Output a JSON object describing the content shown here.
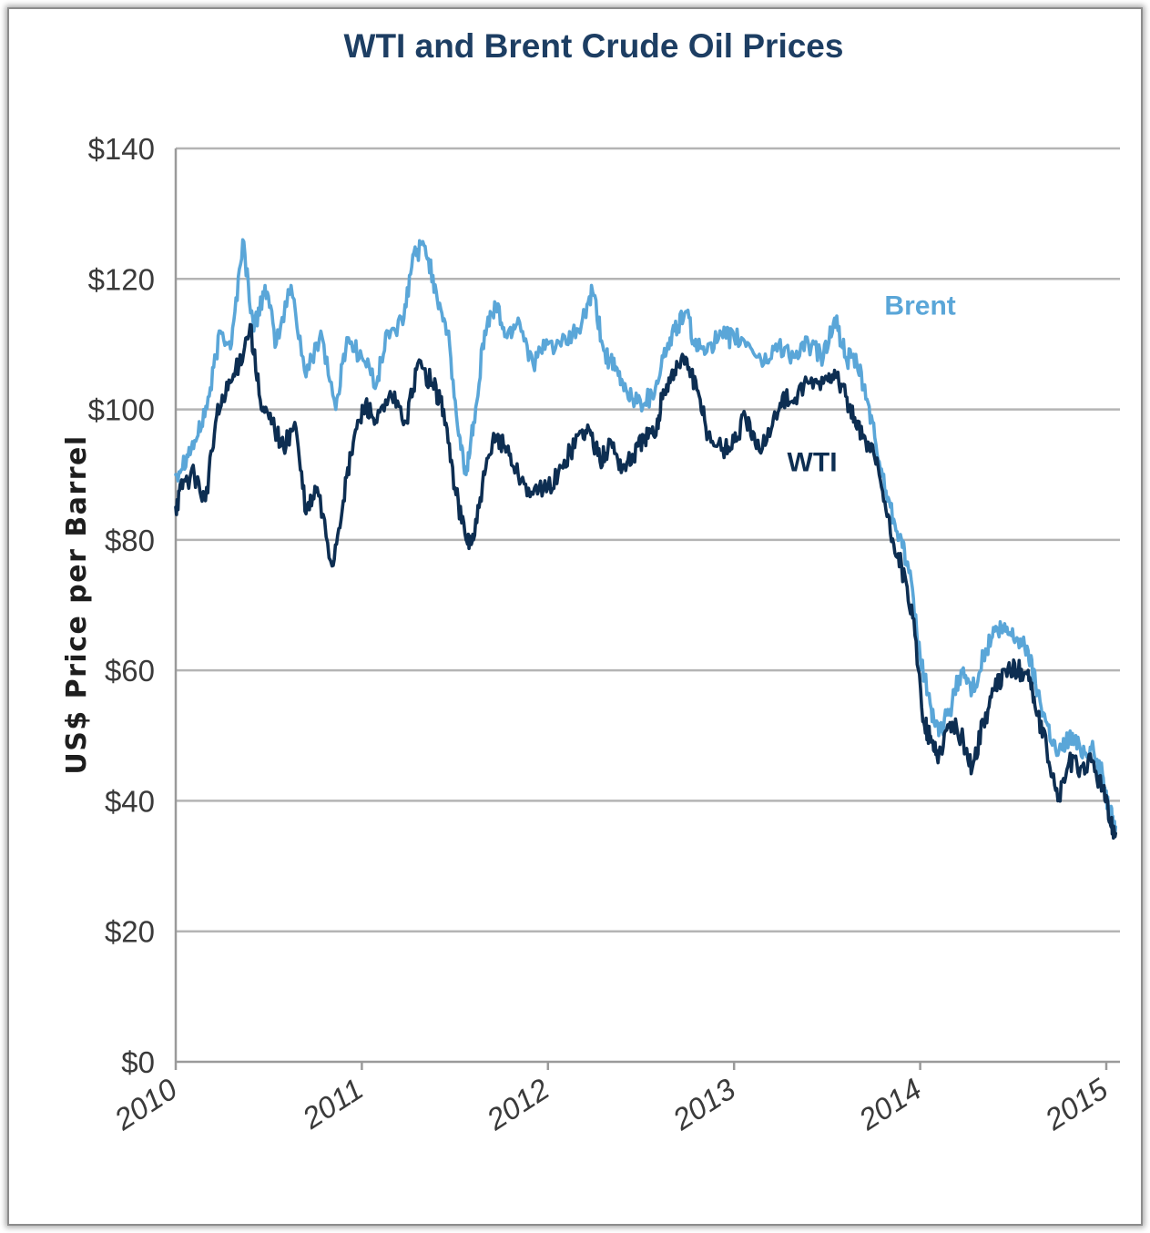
{
  "chart_data": {
    "type": "line",
    "title": "WTI and Brent Crude Oil Prices",
    "xlabel": "",
    "ylabel": "US$ Price per Barrel",
    "xlim": [
      2010,
      2015.05
    ],
    "ylim": [
      0,
      140
    ],
    "y_ticks": [
      "$0",
      "$20",
      "$40",
      "$60",
      "$80",
      "$100",
      "$120",
      "$140"
    ],
    "y_tick_values": [
      0,
      20,
      40,
      60,
      80,
      100,
      120,
      140
    ],
    "x_ticks": [
      "2010",
      "2011",
      "2012",
      "2013",
      "2014",
      "2015"
    ],
    "x_tick_values": [
      2010,
      2011,
      2012,
      2013,
      2014,
      2015
    ],
    "grid": true,
    "legend": "inline labels",
    "series": [
      {
        "name": "Brent",
        "color": "#5aa6d8",
        "points": [
          [
            2010.0,
            90
          ],
          [
            2010.06,
            93
          ],
          [
            2010.12,
            96
          ],
          [
            2010.18,
            102
          ],
          [
            2010.24,
            112
          ],
          [
            2010.3,
            110
          ],
          [
            2010.36,
            126
          ],
          [
            2010.42,
            112
          ],
          [
            2010.48,
            119
          ],
          [
            2010.54,
            110
          ],
          [
            2010.62,
            119
          ],
          [
            2010.7,
            105
          ],
          [
            2010.78,
            112
          ],
          [
            2010.86,
            100
          ],
          [
            2010.92,
            111
          ],
          [
            2011.0,
            108
          ],
          [
            2011.08,
            104
          ],
          [
            2011.14,
            112
          ],
          [
            2011.22,
            113
          ],
          [
            2011.28,
            124
          ],
          [
            2011.34,
            125
          ],
          [
            2011.4,
            118
          ],
          [
            2011.46,
            112
          ],
          [
            2011.52,
            96
          ],
          [
            2011.56,
            90
          ],
          [
            2011.6,
            98
          ],
          [
            2011.66,
            112
          ],
          [
            2011.72,
            116
          ],
          [
            2011.78,
            111
          ],
          [
            2011.84,
            114
          ],
          [
            2011.92,
            107
          ],
          [
            2012.0,
            110
          ],
          [
            2012.1,
            110
          ],
          [
            2012.18,
            113
          ],
          [
            2012.24,
            118
          ],
          [
            2012.3,
            109
          ],
          [
            2012.36,
            106
          ],
          [
            2012.42,
            103
          ],
          [
            2012.48,
            101
          ],
          [
            2012.56,
            102
          ],
          [
            2012.62,
            108
          ],
          [
            2012.68,
            112
          ],
          [
            2012.74,
            115
          ],
          [
            2012.8,
            109
          ],
          [
            2012.86,
            110
          ],
          [
            2012.94,
            111
          ],
          [
            2013.0,
            111
          ],
          [
            2013.08,
            110
          ],
          [
            2013.16,
            107
          ],
          [
            2013.24,
            110
          ],
          [
            2013.32,
            108
          ],
          [
            2013.4,
            110
          ],
          [
            2013.48,
            108
          ],
          [
            2013.54,
            114
          ],
          [
            2013.6,
            108
          ],
          [
            2013.66,
            107
          ],
          [
            2013.72,
            101
          ],
          [
            2013.78,
            92
          ],
          [
            2013.84,
            85
          ],
          [
            2013.9,
            80
          ],
          [
            2013.94,
            75
          ],
          [
            2014.0,
            62
          ],
          [
            2014.06,
            54
          ],
          [
            2014.1,
            50
          ],
          [
            2014.16,
            54
          ],
          [
            2014.22,
            60
          ],
          [
            2014.28,
            57
          ],
          [
            2014.34,
            62
          ],
          [
            2014.4,
            66
          ],
          [
            2014.46,
            66
          ],
          [
            2014.52,
            65
          ],
          [
            2014.58,
            63
          ],
          [
            2014.62,
            58
          ],
          [
            2014.68,
            52
          ],
          [
            2014.74,
            47
          ],
          [
            2014.8,
            50
          ],
          [
            2014.86,
            48
          ],
          [
            2014.92,
            48
          ],
          [
            2014.98,
            44
          ],
          [
            2015.02,
            38
          ],
          [
            2015.05,
            36
          ]
        ]
      },
      {
        "name": "WTI",
        "color": "#0d2e52",
        "points": [
          [
            2010.0,
            85
          ],
          [
            2010.04,
            89
          ],
          [
            2010.1,
            90
          ],
          [
            2010.16,
            86
          ],
          [
            2010.22,
            99
          ],
          [
            2010.28,
            103
          ],
          [
            2010.34,
            107
          ],
          [
            2010.4,
            113
          ],
          [
            2010.46,
            100
          ],
          [
            2010.52,
            98
          ],
          [
            2010.58,
            94
          ],
          [
            2010.64,
            98
          ],
          [
            2010.7,
            84
          ],
          [
            2010.76,
            88
          ],
          [
            2010.84,
            76
          ],
          [
            2010.9,
            86
          ],
          [
            2010.96,
            96
          ],
          [
            2011.02,
            101
          ],
          [
            2011.08,
            98
          ],
          [
            2011.16,
            102
          ],
          [
            2011.24,
            98
          ],
          [
            2011.3,
            107
          ],
          [
            2011.38,
            104
          ],
          [
            2011.44,
            100
          ],
          [
            2011.5,
            88
          ],
          [
            2011.56,
            80
          ],
          [
            2011.6,
            80
          ],
          [
            2011.66,
            90
          ],
          [
            2011.72,
            96
          ],
          [
            2011.78,
            94
          ],
          [
            2011.84,
            90
          ],
          [
            2011.92,
            87
          ],
          [
            2012.0,
            88
          ],
          [
            2012.08,
            91
          ],
          [
            2012.16,
            96
          ],
          [
            2012.22,
            97
          ],
          [
            2012.28,
            92
          ],
          [
            2012.34,
            95
          ],
          [
            2012.4,
            91
          ],
          [
            2012.46,
            93
          ],
          [
            2012.52,
            96
          ],
          [
            2012.58,
            96
          ],
          [
            2012.62,
            103
          ],
          [
            2012.68,
            106
          ],
          [
            2012.74,
            108
          ],
          [
            2012.8,
            103
          ],
          [
            2012.86,
            96
          ],
          [
            2012.94,
            94
          ],
          [
            2013.0,
            95
          ],
          [
            2013.06,
            99
          ],
          [
            2013.12,
            94
          ],
          [
            2013.2,
            97
          ],
          [
            2013.26,
            102
          ],
          [
            2013.32,
            101
          ],
          [
            2013.4,
            104
          ],
          [
            2013.48,
            104
          ],
          [
            2013.54,
            106
          ],
          [
            2013.6,
            102
          ],
          [
            2013.66,
            97
          ],
          [
            2013.72,
            95
          ],
          [
            2013.78,
            90
          ],
          [
            2013.84,
            81
          ],
          [
            2013.9,
            76
          ],
          [
            2013.96,
            68
          ],
          [
            2014.02,
            52
          ],
          [
            2014.06,
            49
          ],
          [
            2014.1,
            47
          ],
          [
            2014.16,
            52
          ],
          [
            2014.22,
            50
          ],
          [
            2014.28,
            45
          ],
          [
            2014.34,
            52
          ],
          [
            2014.4,
            57
          ],
          [
            2014.46,
            60
          ],
          [
            2014.52,
            60
          ],
          [
            2014.58,
            60
          ],
          [
            2014.62,
            54
          ],
          [
            2014.68,
            48
          ],
          [
            2014.74,
            40
          ],
          [
            2014.8,
            46
          ],
          [
            2014.86,
            45
          ],
          [
            2014.92,
            46
          ],
          [
            2014.98,
            42
          ],
          [
            2015.02,
            37
          ],
          [
            2015.05,
            35
          ]
        ]
      }
    ],
    "annotations": [
      {
        "text": "Brent",
        "x": 2014.0,
        "y": 114.5,
        "color": "#5aa6d8"
      },
      {
        "text": "WTI",
        "x": 2013.42,
        "y": 90.5,
        "color": "#0d2e52"
      }
    ]
  }
}
